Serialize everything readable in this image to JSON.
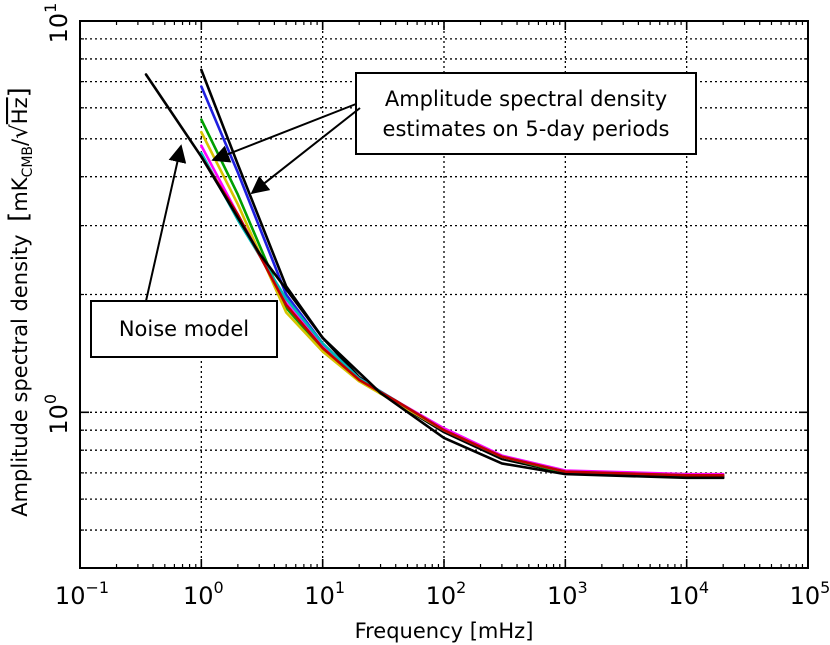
{
  "chart_data": {
    "type": "line",
    "xlabel": "Frequency [mHz]",
    "ylabel": "Amplitude spectral density",
    "ylabel_unit_main": "mK",
    "ylabel_unit_sub": "CMB",
    "ylabel_unit_root": "Hz",
    "x_scale": "log",
    "y_scale": "log",
    "xlim": [
      0.1,
      100000
    ],
    "ylim": [
      0.4,
      10
    ],
    "grid": true,
    "x_ticks": [
      {
        "value": 0.1,
        "base": "10",
        "exp": "−1"
      },
      {
        "value": 1,
        "base": "10",
        "exp": "0"
      },
      {
        "value": 10,
        "base": "10",
        "exp": "1"
      },
      {
        "value": 100,
        "base": "10",
        "exp": "2"
      },
      {
        "value": 1000,
        "base": "10",
        "exp": "3"
      },
      {
        "value": 10000,
        "base": "10",
        "exp": "4"
      },
      {
        "value": 100000,
        "base": "10",
        "exp": "5"
      }
    ],
    "y_ticks": [
      {
        "value": 1,
        "base": "10",
        "exp": "0"
      },
      {
        "value": 10,
        "base": "10",
        "exp": "1"
      }
    ],
    "annotations": [
      {
        "lines": [
          "Amplitude spectral density",
          "estimates on 5-day periods"
        ]
      },
      {
        "lines": [
          "Noise model"
        ]
      }
    ],
    "series": [
      {
        "color": "#000000",
        "points": [
          [
            1,
            7.5
          ],
          [
            2,
            4.3
          ],
          [
            5,
            2.1
          ],
          [
            10,
            1.55
          ],
          [
            20,
            1.23
          ],
          [
            40,
            1.06
          ],
          [
            100,
            0.89
          ],
          [
            300,
            0.76
          ],
          [
            1000,
            0.7
          ],
          [
            10000,
            0.685
          ],
          [
            20000,
            0.685
          ]
        ]
      },
      {
        "color": "#1f1fe0",
        "points": [
          [
            1,
            6.8
          ],
          [
            2,
            4.1
          ],
          [
            5,
            2.0
          ],
          [
            10,
            1.5
          ],
          [
            20,
            1.22
          ],
          [
            40,
            1.07
          ],
          [
            100,
            0.9
          ],
          [
            300,
            0.77
          ],
          [
            1000,
            0.705
          ],
          [
            10000,
            0.69
          ],
          [
            20000,
            0.69
          ]
        ]
      },
      {
        "color": "#00a000",
        "points": [
          [
            1,
            5.6
          ],
          [
            2,
            3.6
          ],
          [
            5,
            1.85
          ],
          [
            10,
            1.45
          ],
          [
            20,
            1.21
          ],
          [
            40,
            1.07
          ],
          [
            100,
            0.9
          ],
          [
            300,
            0.77
          ],
          [
            1000,
            0.7
          ],
          [
            10000,
            0.69
          ],
          [
            20000,
            0.69
          ]
        ]
      },
      {
        "color": "#d6c400",
        "points": [
          [
            1,
            5.2
          ],
          [
            2,
            3.4
          ],
          [
            5,
            1.8
          ],
          [
            10,
            1.43
          ],
          [
            20,
            1.2
          ],
          [
            40,
            1.06
          ],
          [
            100,
            0.9
          ],
          [
            300,
            0.77
          ],
          [
            1000,
            0.705
          ],
          [
            10000,
            0.695
          ],
          [
            20000,
            0.695
          ]
        ]
      },
      {
        "color": "#ff00ff",
        "points": [
          [
            1,
            4.8
          ],
          [
            2,
            3.2
          ],
          [
            5,
            1.9
          ],
          [
            10,
            1.47
          ],
          [
            20,
            1.22
          ],
          [
            40,
            1.07
          ],
          [
            100,
            0.91
          ],
          [
            300,
            0.775
          ],
          [
            1000,
            0.71
          ],
          [
            10000,
            0.695
          ],
          [
            20000,
            0.695
          ]
        ]
      },
      {
        "color": "#00b8b8",
        "points": [
          [
            1,
            4.6
          ],
          [
            2,
            3.1
          ],
          [
            5,
            1.95
          ],
          [
            10,
            1.5
          ],
          [
            20,
            1.22
          ],
          [
            40,
            1.07
          ],
          [
            100,
            0.9
          ],
          [
            300,
            0.77
          ],
          [
            1000,
            0.705
          ],
          [
            10000,
            0.69
          ],
          [
            20000,
            0.69
          ]
        ]
      },
      {
        "color": "#c00000",
        "points": [
          [
            1,
            4.5
          ],
          [
            2,
            3.2
          ],
          [
            5,
            1.88
          ],
          [
            10,
            1.46
          ],
          [
            20,
            1.21
          ],
          [
            40,
            1.07
          ],
          [
            100,
            0.9
          ],
          [
            300,
            0.77
          ],
          [
            1000,
            0.705
          ],
          [
            10000,
            0.69
          ],
          [
            20000,
            0.69
          ]
        ]
      },
      {
        "color": "#000000",
        "points": [
          [
            0.35,
            7.3
          ],
          [
            1,
            4.5
          ],
          [
            3,
            2.55
          ],
          [
            10,
            1.55
          ],
          [
            30,
            1.12
          ],
          [
            100,
            0.86
          ],
          [
            300,
            0.74
          ],
          [
            1000,
            0.695
          ],
          [
            10000,
            0.68
          ],
          [
            20000,
            0.68
          ]
        ]
      }
    ]
  }
}
